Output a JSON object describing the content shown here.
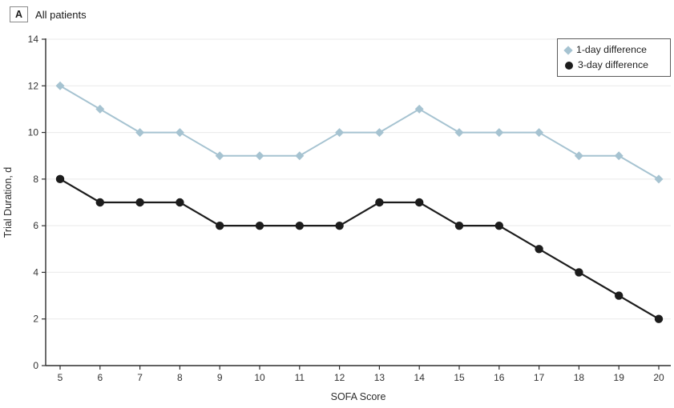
{
  "panel": {
    "label": "A",
    "title": "All patients"
  },
  "chart_data": {
    "type": "line",
    "x": [
      5,
      6,
      7,
      8,
      9,
      10,
      11,
      12,
      13,
      14,
      15,
      16,
      17,
      18,
      19,
      20
    ],
    "series": [
      {
        "name": "1-day difference",
        "marker": "diamond",
        "color": "#a6c3d1",
        "values": [
          12,
          11,
          10,
          10,
          9,
          9,
          9,
          10,
          10,
          11,
          10,
          10,
          10,
          9,
          9,
          8
        ]
      },
      {
        "name": "3-day difference",
        "marker": "circle",
        "color": "#1c1c1c",
        "values": [
          8,
          7,
          7,
          7,
          6,
          6,
          6,
          6,
          7,
          7,
          6,
          6,
          5,
          4,
          3,
          2
        ]
      }
    ],
    "xlabel": "SOFA Score",
    "ylabel": "Trial Duration, d",
    "ylim": [
      0,
      14
    ],
    "yticks": [
      0,
      2,
      4,
      6,
      8,
      10,
      12,
      14
    ],
    "grid": true,
    "legend_position": "top-right"
  },
  "colors": {
    "axis": "#2e2e2e",
    "grid": "#e9e9e9",
    "text": "#333333",
    "series_blue": "#a6c3d1",
    "series_black": "#1c1c1c"
  }
}
